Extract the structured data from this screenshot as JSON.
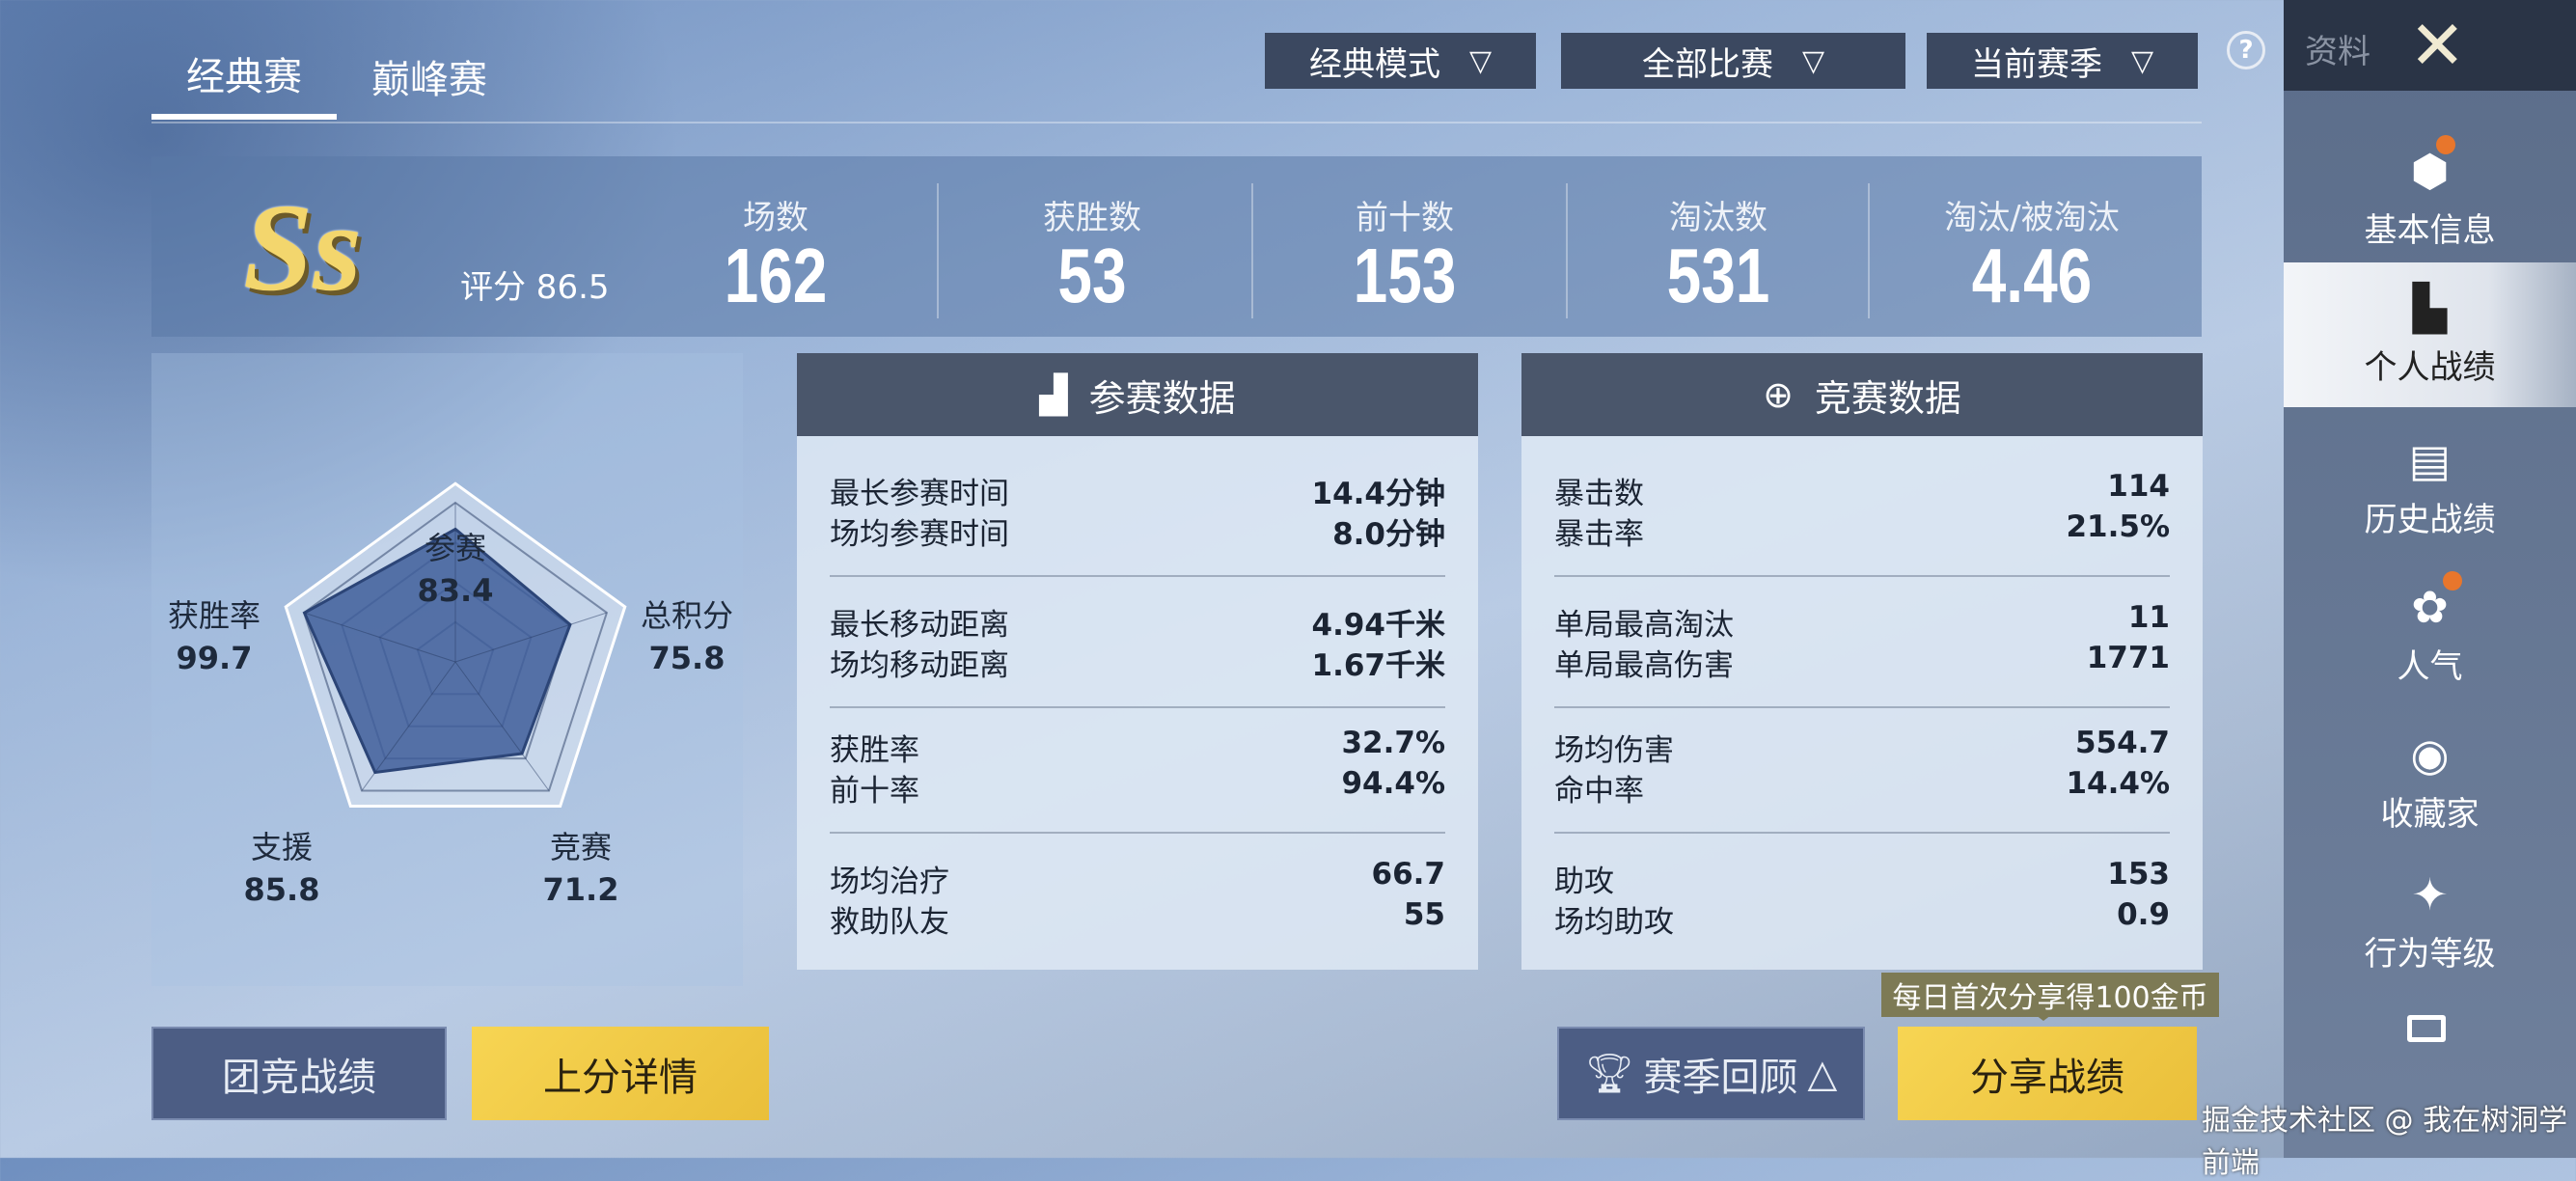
{
  "tabs": [
    {
      "label": "经典赛",
      "active": true
    },
    {
      "label": "巅峰赛",
      "active": false
    }
  ],
  "filters": [
    {
      "label": "经典模式"
    },
    {
      "label": "全部比赛"
    },
    {
      "label": "当前赛季"
    }
  ],
  "header": {
    "help_icon": "question-icon",
    "section_label": "资料",
    "close_icon": "close-x-icon"
  },
  "sidebar": {
    "items": [
      {
        "label": "基本信息",
        "icon": "profile-icon",
        "badge": true
      },
      {
        "label": "个人战绩",
        "icon": "stats-doc-icon",
        "active": true
      },
      {
        "label": "历史战绩",
        "icon": "history-doc-icon"
      },
      {
        "label": "人气",
        "icon": "rose-icon",
        "badge": true
      },
      {
        "label": "收藏家",
        "icon": "collector-badge-icon"
      },
      {
        "label": "行为等级",
        "icon": "behavior-badge-icon"
      }
    ],
    "more_icon": "menu-icon"
  },
  "summary": {
    "grade": "Ss",
    "score_label": "评分 86.5",
    "stats": [
      {
        "label": "场数",
        "value": "162"
      },
      {
        "label": "获胜数",
        "value": "53"
      },
      {
        "label": "前十数",
        "value": "153"
      },
      {
        "label": "淘汰数",
        "value": "531"
      },
      {
        "label": "淘汰/被淘汰",
        "value": "4.46"
      }
    ]
  },
  "chart_data": {
    "type": "radar",
    "max": 100,
    "axes": [
      "参赛",
      "总积分",
      "竞赛",
      "支援",
      "获胜率"
    ],
    "values": [
      83.4,
      75.8,
      71.2,
      85.8,
      99.7
    ],
    "labels": [
      "83.4",
      "75.8",
      "71.2",
      "85.8",
      "99.7"
    ],
    "fill_color": "#3f5e9a"
  },
  "participation": {
    "title": "参赛数据",
    "icon": "bar-chart-icon",
    "groups": [
      [
        {
          "k": "最长参赛时间",
          "v": "14.4分钟"
        },
        {
          "k": "场均参赛时间",
          "v": "8.0分钟"
        }
      ],
      [
        {
          "k": "最长移动距离",
          "v": "4.94千米"
        },
        {
          "k": "场均移动距离",
          "v": "1.67千米"
        }
      ],
      [
        {
          "k": "获胜率",
          "v": "32.7%"
        },
        {
          "k": "前十率",
          "v": "94.4%"
        }
      ],
      [
        {
          "k": "场均治疗",
          "v": "66.7"
        },
        {
          "k": "救助队友",
          "v": "55"
        }
      ]
    ]
  },
  "combat": {
    "title": "竞赛数据",
    "icon": "crosshair-icon",
    "groups": [
      [
        {
          "k": "暴击数",
          "v": "114"
        },
        {
          "k": "暴击率",
          "v": "21.5%"
        }
      ],
      [
        {
          "k": "单局最高淘汰",
          "v": "11"
        },
        {
          "k": "单局最高伤害",
          "v": "1771"
        }
      ],
      [
        {
          "k": "场均伤害",
          "v": "554.7"
        },
        {
          "k": "命中率",
          "v": "14.4%"
        }
      ],
      [
        {
          "k": "助攻",
          "v": "153"
        },
        {
          "k": "场均助攻",
          "v": "0.9"
        }
      ]
    ]
  },
  "buttons": {
    "team": "团竞战绩",
    "rank": "上分详情",
    "season": "赛季回顾",
    "share": "分享战绩",
    "share_tip": "每日首次分享得100金币"
  },
  "watermark": "掘金技术社区 @ 我在树洞学前端",
  "colors": {
    "accent_yellow": "#f3cf4c",
    "badge_orange": "#e8762c",
    "panel_header": "#4a566b"
  }
}
